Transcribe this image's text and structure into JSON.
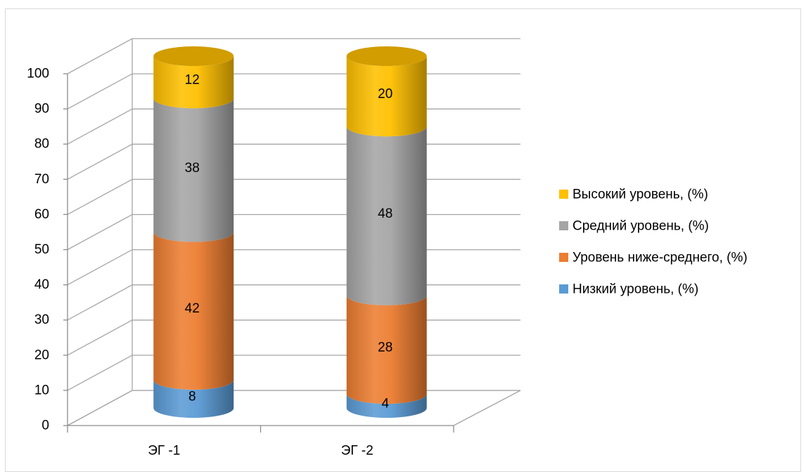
{
  "chart_data": {
    "type": "bar",
    "stacked": true,
    "style": "3d-cylinder",
    "title": "",
    "xlabel": "",
    "ylabel": "",
    "ylim": [
      0,
      100
    ],
    "ytick_step": 10,
    "grid": true,
    "legend_position": "right",
    "categories": [
      "ЭГ -1",
      "ЭГ -2"
    ],
    "series": [
      {
        "name": "Низкий уровень, (%)",
        "values": [
          8,
          4
        ],
        "color": "#5b9bd5"
      },
      {
        "name": "Уровень ниже-среднего, (%)",
        "values": [
          42,
          28
        ],
        "color": "#ed7d31"
      },
      {
        "name": "Средний уровень, (%)",
        "values": [
          38,
          48
        ],
        "color": "#a5a5a5"
      },
      {
        "name": "Высокий уровень, (%)",
        "values": [
          12,
          20
        ],
        "color": "#ffc000"
      }
    ],
    "yticks": [
      "0",
      "10",
      "20",
      "30",
      "40",
      "50",
      "60",
      "70",
      "80",
      "90",
      "100"
    ]
  }
}
